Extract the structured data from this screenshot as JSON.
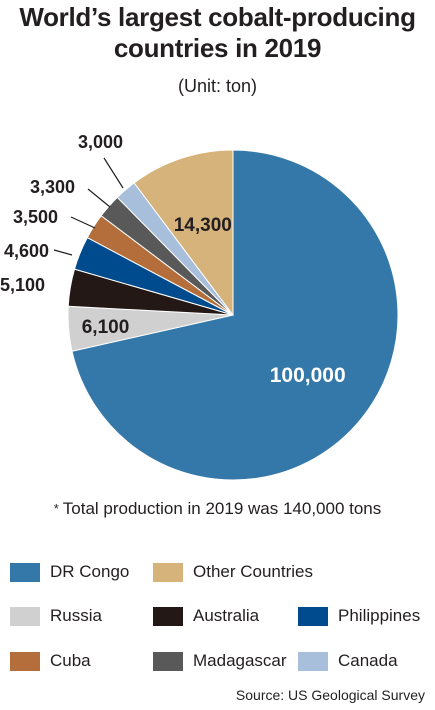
{
  "title_line1": "World’s largest cobalt-producing",
  "title_line2": "countries in 2019",
  "subtitle": "(Unit: ton)",
  "note_marker": "*",
  "note": "Total production in 2019 was 140,000 tons",
  "source": "Source: US Geological Survey",
  "chart_data": {
    "type": "pie",
    "title": "World’s largest cobalt-producing countries in 2019",
    "unit": "(Unit: ton)",
    "legend_position": "bottom",
    "slices": [
      {
        "name": "DR Congo",
        "value": 100000,
        "label": "100,000",
        "color": "#3478aa"
      },
      {
        "name": "Russia",
        "value": 6100,
        "label": "6,100",
        "color": "#cfd0cf"
      },
      {
        "name": "Australia",
        "value": 5100,
        "label": "5,100",
        "color": "#231815"
      },
      {
        "name": "Philippines",
        "value": 4600,
        "label": "4,600",
        "color": "#004b8d"
      },
      {
        "name": "Cuba",
        "value": 3500,
        "label": "3,500",
        "color": "#b46e3c"
      },
      {
        "name": "Madagascar",
        "value": 3300,
        "label": "3,300",
        "color": "#595959"
      },
      {
        "name": "Canada",
        "value": 3000,
        "label": "3,000",
        "color": "#a7bfdb"
      },
      {
        "name": "Other Countries",
        "value": 14300,
        "label": "14,300",
        "color": "#d6b37b"
      }
    ]
  }
}
